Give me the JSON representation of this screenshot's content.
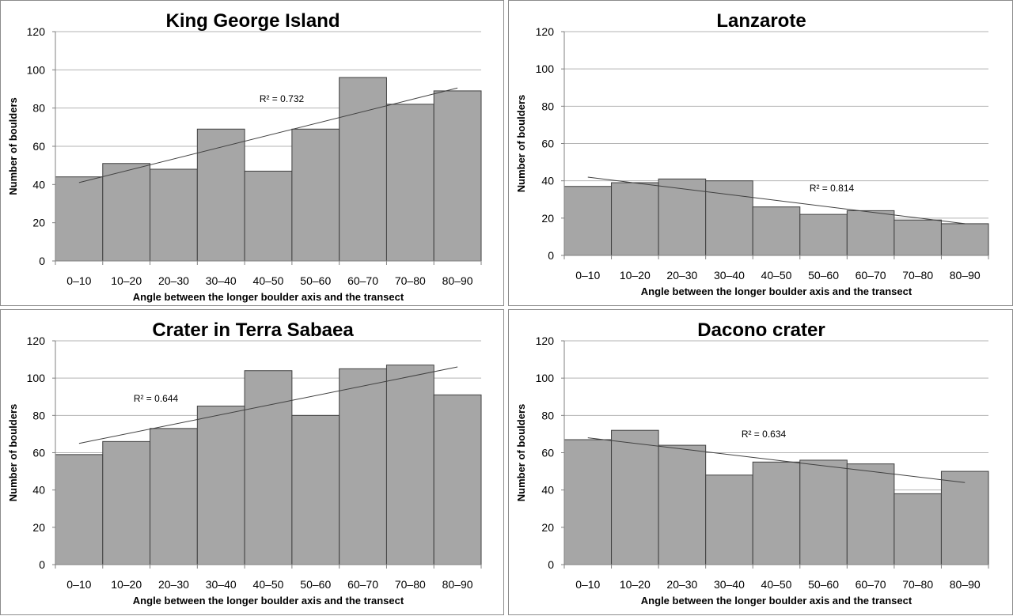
{
  "chart_data": [
    {
      "type": "bar",
      "title": "King George Island",
      "categories": [
        "0–10",
        "10–20",
        "20–30",
        "30–40",
        "40–50",
        "50–60",
        "60–70",
        "70–80",
        "80–90"
      ],
      "values": [
        44,
        51,
        48,
        69,
        47,
        69,
        96,
        82,
        89
      ],
      "xlabel": "Angle between the longer boulder axis and the transect",
      "ylabel": "Number of boulders",
      "ylim": [
        0,
        120
      ],
      "yticks": [
        0,
        20,
        40,
        60,
        80,
        100,
        120
      ],
      "grid": true,
      "trendline": {
        "start": 41,
        "end": 90.5,
        "r2": "R² = 0.732"
      },
      "colors": {
        "bar": "#a6a6a6",
        "edge": "#404040",
        "grid": "#b3b3b3"
      }
    },
    {
      "type": "bar",
      "title": "Lanzarote",
      "categories": [
        "0–10",
        "10–20",
        "20–30",
        "30–40",
        "40–50",
        "50–60",
        "60–70",
        "70–80",
        "80–90"
      ],
      "values": [
        37,
        39,
        41,
        40,
        26,
        22,
        24,
        19,
        17
      ],
      "xlabel": "Angle between the longer boulder axis and the transect",
      "ylabel": "Number of boulders",
      "ylim": [
        0,
        120
      ],
      "yticks": [
        0,
        20,
        40,
        60,
        80,
        100,
        120
      ],
      "grid": true,
      "trendline": {
        "start": 42,
        "end": 17,
        "r2": "R² = 0.814"
      },
      "colors": {
        "bar": "#a6a6a6",
        "edge": "#404040",
        "grid": "#b3b3b3"
      }
    },
    {
      "type": "bar",
      "title": "Crater in Terra Sabaea",
      "categories": [
        "0–10",
        "10–20",
        "20–30",
        "30–40",
        "40–50",
        "50–60",
        "60–70",
        "70–80",
        "80–90"
      ],
      "values": [
        59,
        66,
        73,
        85,
        104,
        80,
        105,
        107,
        91
      ],
      "xlabel": "Angle between the longer boulder axis and the transect",
      "ylabel": "Number of boulders",
      "ylim": [
        0,
        120
      ],
      "yticks": [
        0,
        20,
        40,
        60,
        80,
        100,
        120
      ],
      "grid": true,
      "trendline": {
        "start": 65,
        "end": 106,
        "r2": "R² = 0.644"
      },
      "colors": {
        "bar": "#a6a6a6",
        "edge": "#404040",
        "grid": "#b3b3b3"
      }
    },
    {
      "type": "bar",
      "title": "Dacono crater",
      "categories": [
        "0–10",
        "10–20",
        "20–30",
        "30–40",
        "40–50",
        "50–60",
        "60–70",
        "70–80",
        "80–90"
      ],
      "values": [
        67,
        72,
        64,
        48,
        55,
        56,
        54,
        38,
        50
      ],
      "xlabel": "Angle between the longer boulder axis and the transect",
      "ylabel": "Number of boulders",
      "ylim": [
        0,
        120
      ],
      "yticks": [
        0,
        20,
        40,
        60,
        80,
        100,
        120
      ],
      "grid": true,
      "trendline": {
        "start": 68,
        "end": 44,
        "r2": "R² = 0.634"
      },
      "colors": {
        "bar": "#a6a6a6",
        "edge": "#404040",
        "grid": "#b3b3b3"
      }
    }
  ]
}
